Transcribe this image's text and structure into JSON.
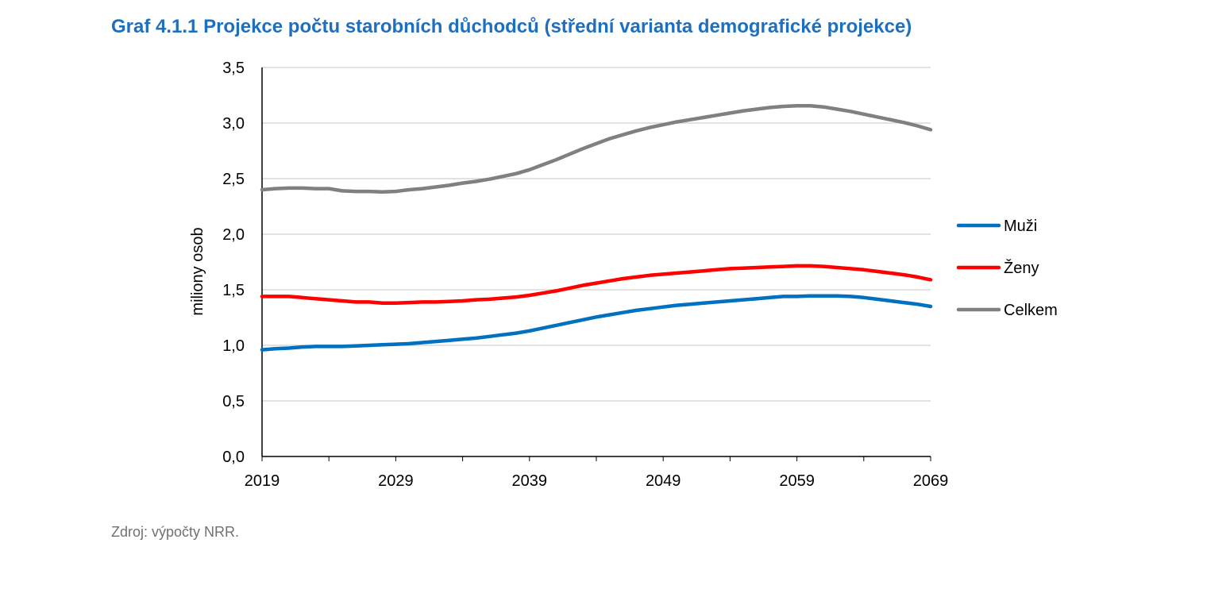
{
  "title": "Graf 4.1.1 Projekce počtu starobních důchodců (střední varianta demografické projekce)",
  "source": "Zdroj: výpočty NRR.",
  "chart_data": {
    "type": "line",
    "title": "Graf 4.1.1 Projekce počtu starobních důchodců (střední varianta demografické projekce)",
    "xlabel": "",
    "ylabel": "miliony osob",
    "xlim": [
      2019,
      2069
    ],
    "ylim": [
      0,
      3.5
    ],
    "y_ticks": [
      "0,0",
      "0,5",
      "1,0",
      "1,5",
      "2,0",
      "2,5",
      "3,0",
      "3,5"
    ],
    "x_ticks": [
      "2019",
      "2029",
      "2039",
      "2049",
      "2059",
      "2069"
    ],
    "grid": "horizontal",
    "legend_position": "right",
    "x": [
      2019,
      2020,
      2021,
      2022,
      2023,
      2024,
      2025,
      2026,
      2027,
      2028,
      2029,
      2030,
      2031,
      2032,
      2033,
      2034,
      2035,
      2036,
      2037,
      2038,
      2039,
      2040,
      2041,
      2042,
      2043,
      2044,
      2045,
      2046,
      2047,
      2048,
      2049,
      2050,
      2051,
      2052,
      2053,
      2054,
      2055,
      2056,
      2057,
      2058,
      2059,
      2060,
      2061,
      2062,
      2063,
      2064,
      2065,
      2066,
      2067,
      2068,
      2069
    ],
    "series": [
      {
        "name": "Muži",
        "color": "#0070c0",
        "values": [
          0.96,
          0.97,
          0.975,
          0.985,
          0.99,
          0.99,
          0.99,
          0.995,
          1.0,
          1.005,
          1.01,
          1.015,
          1.025,
          1.035,
          1.045,
          1.055,
          1.065,
          1.08,
          1.095,
          1.11,
          1.13,
          1.155,
          1.18,
          1.205,
          1.23,
          1.255,
          1.275,
          1.295,
          1.315,
          1.33,
          1.345,
          1.36,
          1.37,
          1.38,
          1.39,
          1.4,
          1.41,
          1.42,
          1.43,
          1.44,
          1.44,
          1.445,
          1.445,
          1.445,
          1.44,
          1.43,
          1.415,
          1.4,
          1.385,
          1.37,
          1.35
        ]
      },
      {
        "name": "Ženy",
        "color": "#ff0000",
        "values": [
          1.44,
          1.44,
          1.44,
          1.43,
          1.42,
          1.41,
          1.4,
          1.39,
          1.39,
          1.38,
          1.38,
          1.385,
          1.39,
          1.39,
          1.395,
          1.4,
          1.41,
          1.415,
          1.425,
          1.435,
          1.45,
          1.47,
          1.49,
          1.515,
          1.54,
          1.56,
          1.58,
          1.6,
          1.615,
          1.63,
          1.64,
          1.65,
          1.66,
          1.67,
          1.68,
          1.69,
          1.695,
          1.7,
          1.705,
          1.71,
          1.715,
          1.715,
          1.71,
          1.7,
          1.69,
          1.68,
          1.665,
          1.65,
          1.635,
          1.615,
          1.59
        ]
      },
      {
        "name": "Celkem",
        "color": "#808080",
        "values": [
          2.4,
          2.41,
          2.415,
          2.415,
          2.41,
          2.41,
          2.39,
          2.385,
          2.385,
          2.38,
          2.385,
          2.4,
          2.41,
          2.425,
          2.44,
          2.46,
          2.475,
          2.495,
          2.52,
          2.545,
          2.58,
          2.625,
          2.67,
          2.72,
          2.77,
          2.815,
          2.86,
          2.895,
          2.93,
          2.96,
          2.985,
          3.01,
          3.03,
          3.05,
          3.07,
          3.09,
          3.11,
          3.125,
          3.14,
          3.15,
          3.155,
          3.155,
          3.145,
          3.125,
          3.105,
          3.08,
          3.055,
          3.03,
          3.005,
          2.975,
          2.94
        ]
      }
    ]
  }
}
